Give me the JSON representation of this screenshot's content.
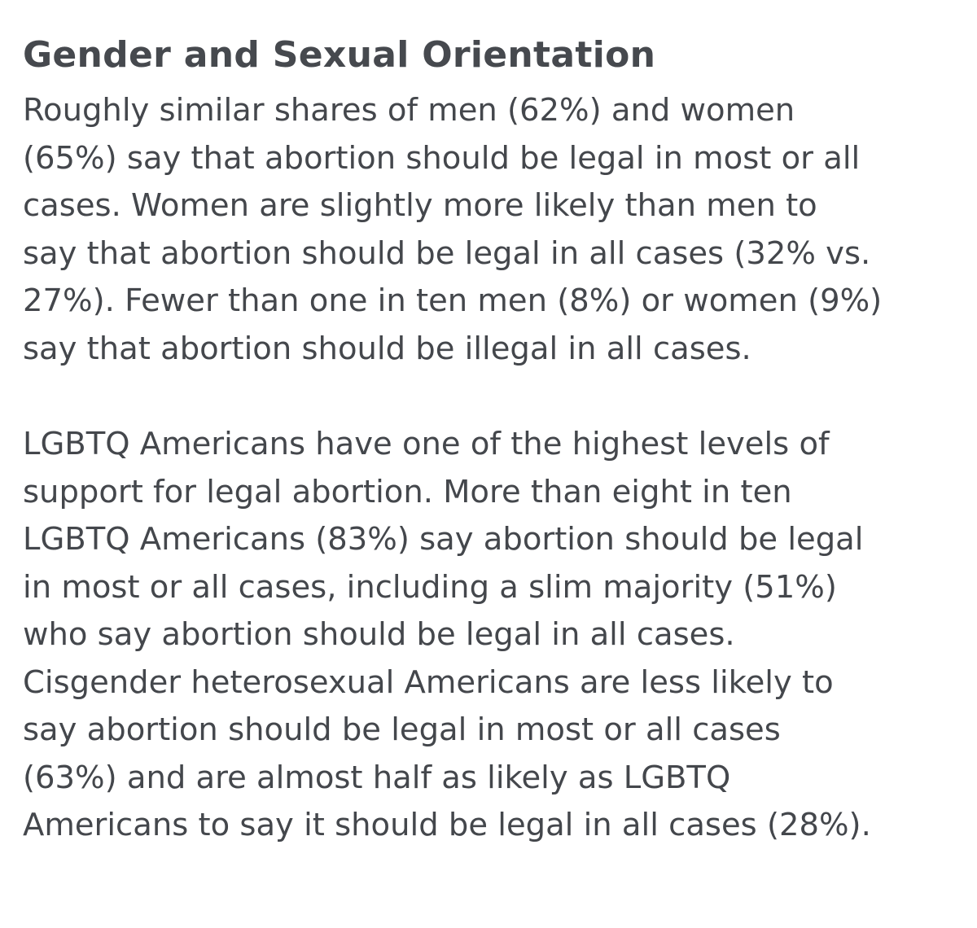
{
  "article": {
    "heading": "Gender and Sexual Orientation",
    "paragraphs": [
      {
        "lines": [
          "Roughly similar shares of men (62%) and women",
          "(65%) say that abortion should be legal in most or all",
          "cases. Women are slightly more likely than men to",
          "say that abortion should be legal in all cases (32% vs.",
          "27%). Fewer than one in ten men (8%) or women (9%)",
          "say that abortion should be illegal in all cases."
        ]
      },
      {
        "lines": [
          "LGBTQ Americans have one of the highest levels of",
          "support for legal abortion. More than eight in ten",
          "LGBTQ Americans (83%) say abortion should be legal",
          "in most or all cases, including a slim majority (51%)",
          "who say abortion should be legal in all cases.",
          "Cisgender heterosexual Americans are less likely to",
          "say abortion should be legal in most or all cases",
          "(63%) and are almost half as likely as LGBTQ",
          "Americans to say it should be legal in all cases (28%)."
        ]
      }
    ]
  }
}
